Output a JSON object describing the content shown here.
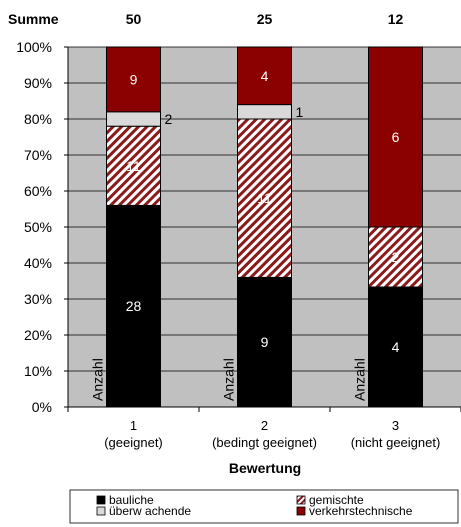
{
  "chart_data": {
    "type": "bar",
    "stacked": true,
    "percent_stacked": true,
    "categories": [
      "1",
      "2",
      "3"
    ],
    "category_sublabels": [
      "(geeignet)",
      "(bedingt geeignet)",
      "(nicht geeignet)"
    ],
    "totals_label": "Summe",
    "totals": [
      50,
      25,
      12
    ],
    "series": [
      {
        "name": "bauliche",
        "values": [
          28,
          9,
          4
        ],
        "color": "#000000",
        "pattern": "solid",
        "label_color": "#ffffff"
      },
      {
        "name": "gemischte",
        "values": [
          11,
          11,
          2
        ],
        "color": "#8b1a1a",
        "pattern": "hatch",
        "label_color": "#ffffff"
      },
      {
        "name": "überw achende",
        "values": [
          2,
          1,
          0
        ],
        "color": "#d9d9d9",
        "pattern": "solid",
        "label_color": "#000000"
      },
      {
        "name": "verkehrstechnische",
        "values": [
          9,
          4,
          6
        ],
        "color": "#8b0000",
        "pattern": "solid",
        "label_color": "#ffffff"
      }
    ],
    "bar_inner_label": "Anzahl",
    "xlabel": "Bewertung",
    "ylabel": "",
    "ylim": [
      0,
      100
    ],
    "y_ticks": [
      "0%",
      "10%",
      "20%",
      "30%",
      "40%",
      "50%",
      "60%",
      "70%",
      "80%",
      "90%",
      "100%"
    ],
    "grid": true,
    "plot_background": "#c0c0c0",
    "legend_position": "bottom"
  }
}
